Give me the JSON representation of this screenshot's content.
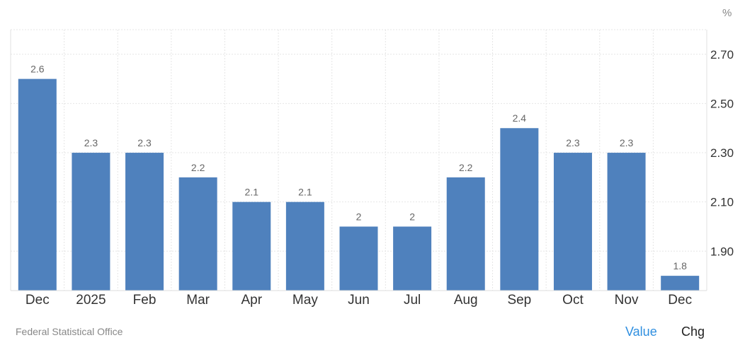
{
  "chart_data": {
    "type": "bar",
    "categories": [
      "Dec",
      "2025",
      "Feb",
      "Mar",
      "Apr",
      "May",
      "Jun",
      "Jul",
      "Aug",
      "Sep",
      "Oct",
      "Nov",
      "Dec"
    ],
    "values": [
      2.6,
      2.3,
      2.3,
      2.2,
      2.1,
      2.1,
      2.0,
      2.0,
      2.2,
      2.4,
      2.3,
      2.3,
      1.8
    ],
    "data_labels": [
      "2.6",
      "2.3",
      "2.3",
      "2.2",
      "2.1",
      "2.1",
      "2",
      "2",
      "2.2",
      "2.4",
      "2.3",
      "2.3",
      "1.8"
    ],
    "yticks": [
      1.9,
      2.1,
      2.3,
      2.5,
      2.7
    ],
    "ytick_labels": [
      "1.90",
      "2.10",
      "2.30",
      "2.50",
      "2.70"
    ],
    "ylim": [
      1.74,
      2.8
    ],
    "yunit": "%",
    "grid": true,
    "bar_color": "#4f81bd"
  },
  "footer": {
    "source": "Federal Statistical Office",
    "value_label": "Value",
    "chg_label": "Chg"
  }
}
